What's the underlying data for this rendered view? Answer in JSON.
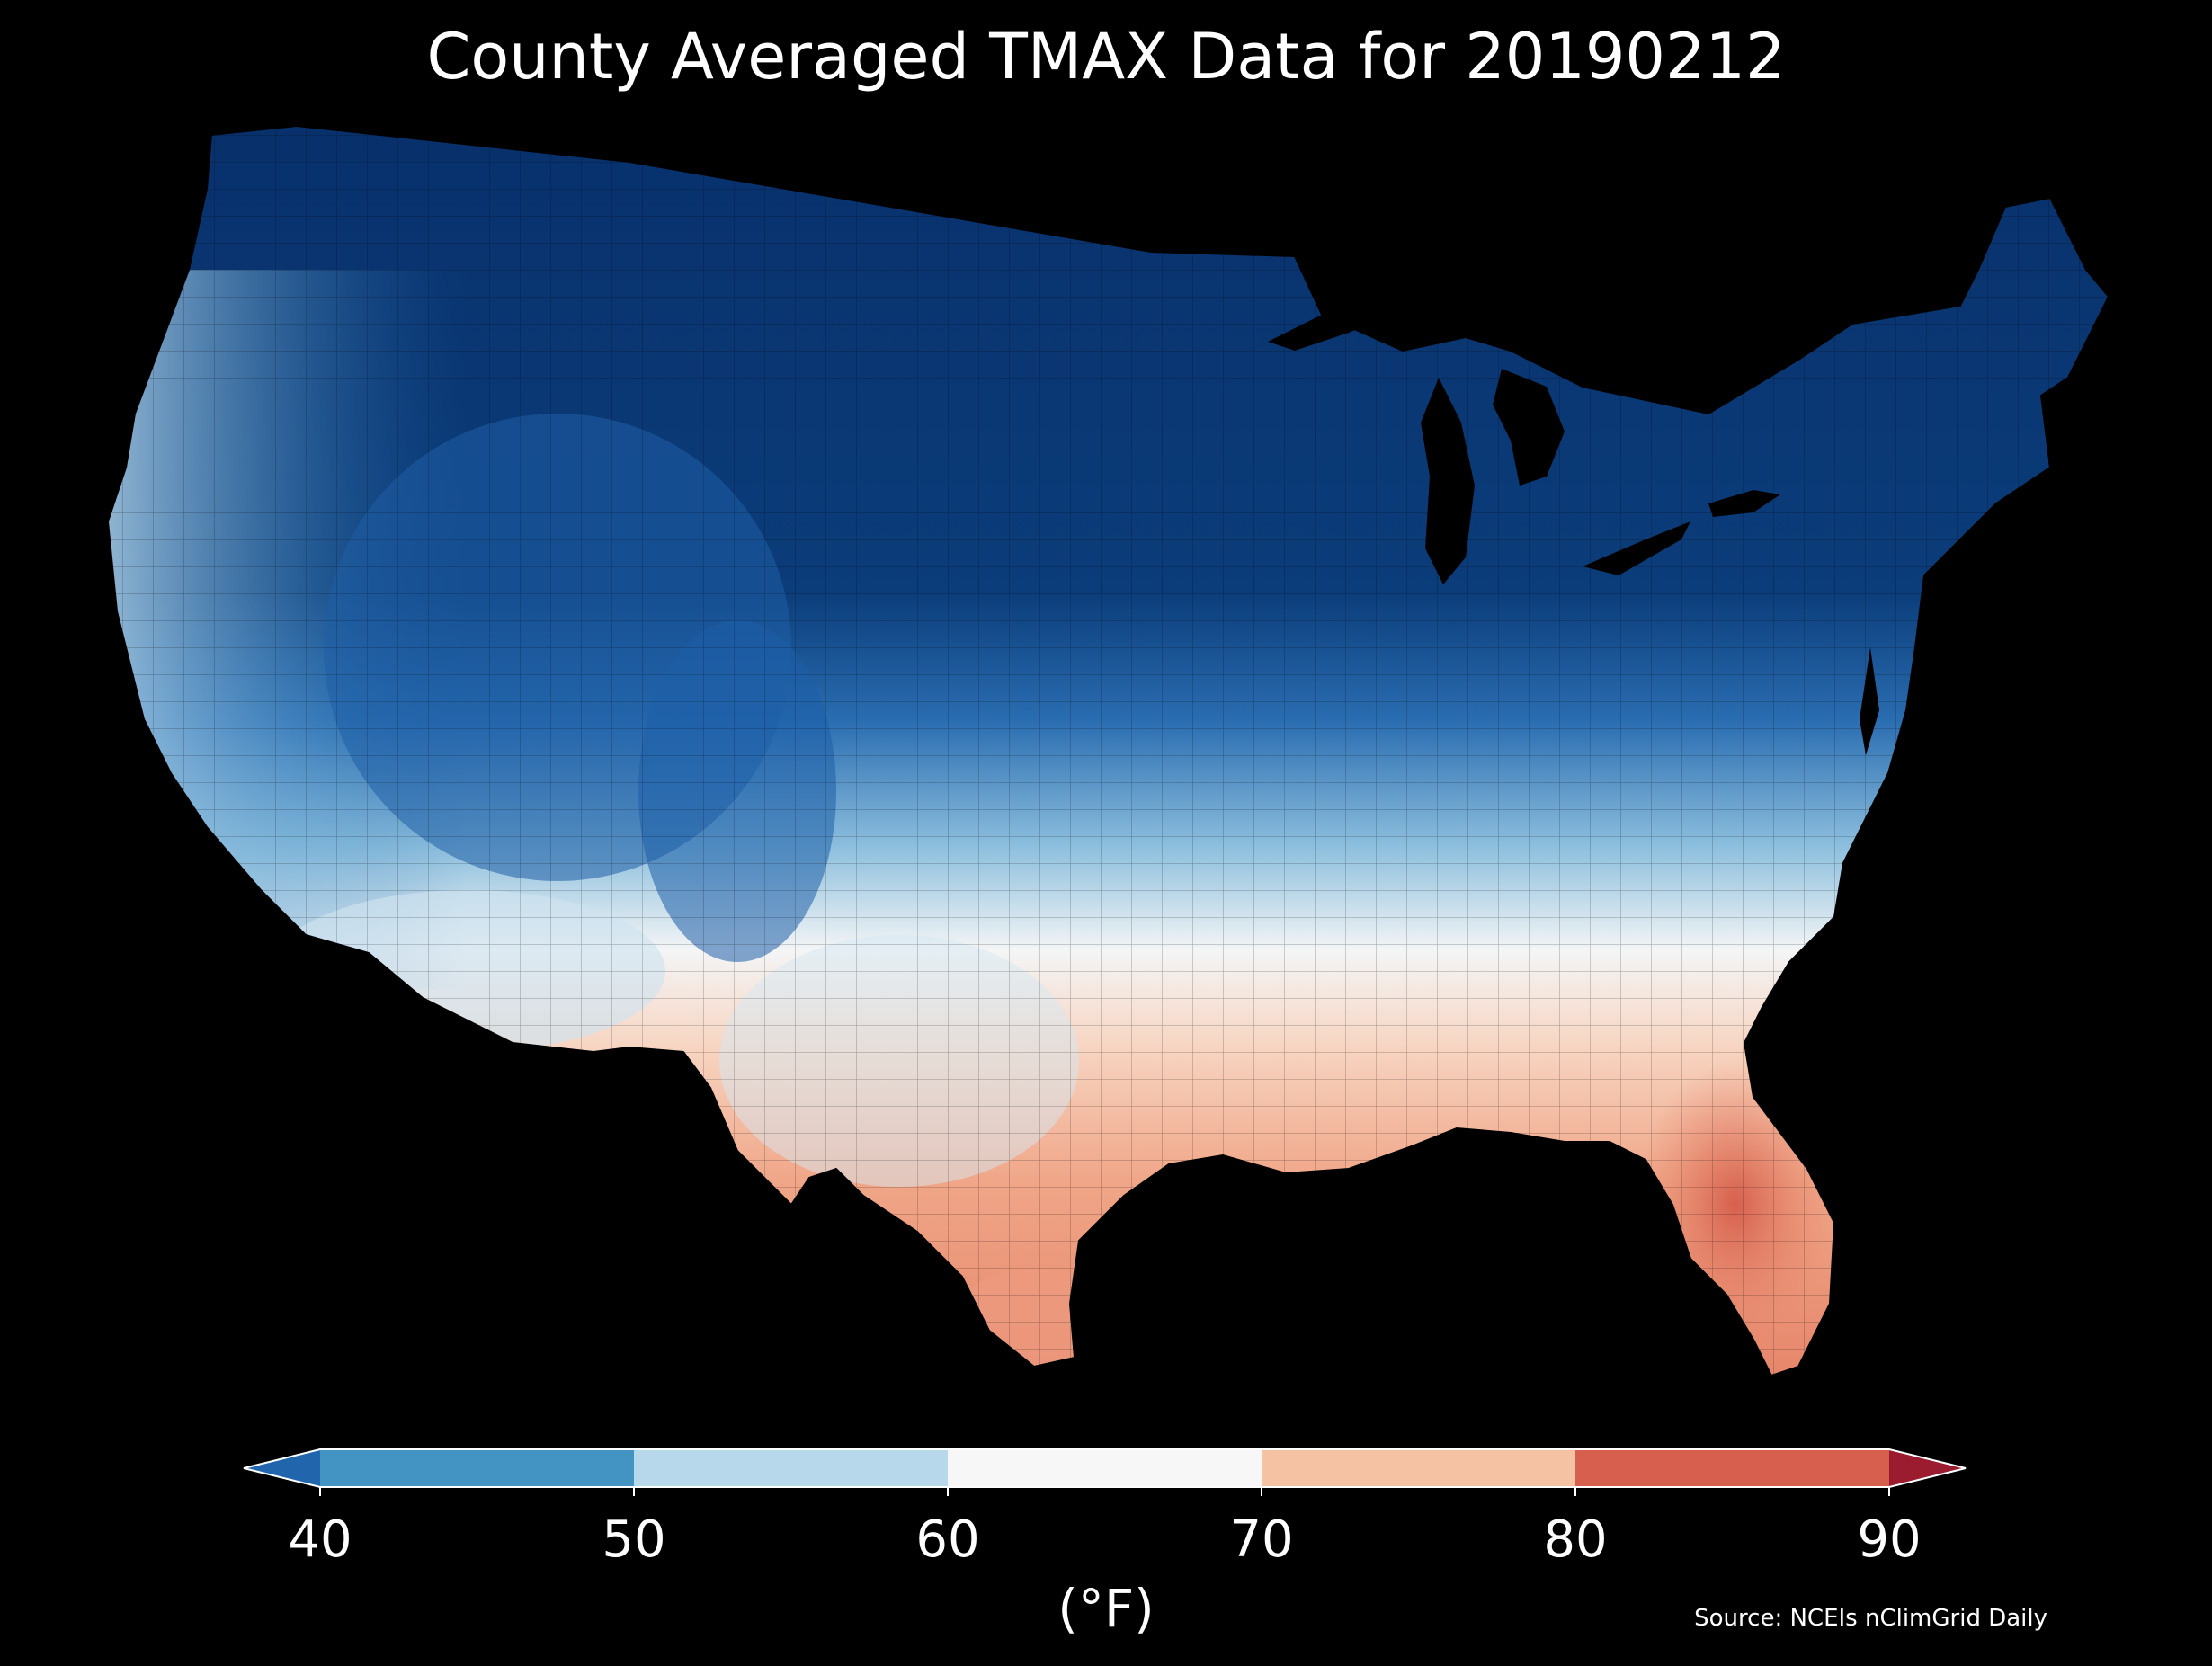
{
  "title": "County Averaged TMAX Data for 20190212",
  "colorbar": {
    "ticks": [
      "40",
      "50",
      "60",
      "70",
      "80",
      "90"
    ],
    "unit_label": "(°F)",
    "bins": [
      {
        "range": "<40",
        "color": "#2166ac"
      },
      {
        "range": "40-50",
        "color": "#4393c3"
      },
      {
        "range": "50-60",
        "color": "#b7d7ea"
      },
      {
        "range": "60-70",
        "color": "#f7f7f7"
      },
      {
        "range": "70-80",
        "color": "#f6c2a4"
      },
      {
        "range": "80-90",
        "color": "#d6604d"
      },
      {
        "range": ">90",
        "color": "#9b1b2f"
      }
    ],
    "extend": "both",
    "orientation": "horizontal"
  },
  "source": "Source: NCEIs nClimGrid Daily",
  "map": {
    "region": "Contiguous United States",
    "shading": "county-level maximum temperature",
    "pattern": "cold north and interior (below 40°F), warming toward the Gulf Coast and Florida (70-80°F+)"
  }
}
